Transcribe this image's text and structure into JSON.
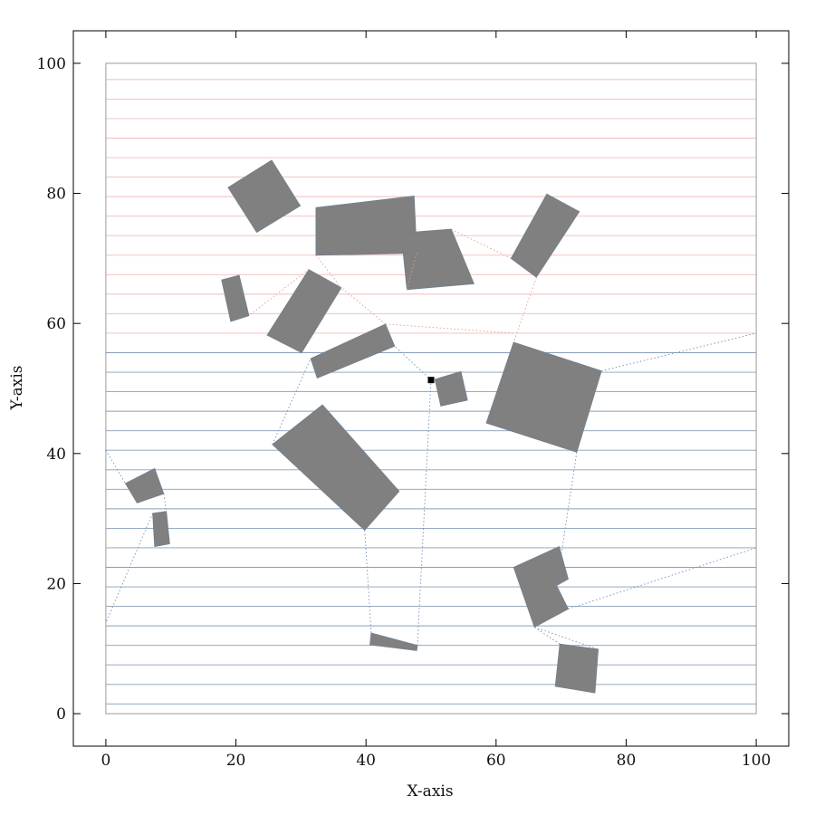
{
  "chart_data": {
    "type": "scatter",
    "title": "",
    "xlabel": "X-axis",
    "ylabel": "Y-axis",
    "xlim": [
      -5,
      105
    ],
    "ylim": [
      -5,
      105
    ],
    "xticks": [
      0,
      20,
      40,
      60,
      80,
      100
    ],
    "yticks": [
      0,
      20,
      40,
      60,
      80,
      100
    ],
    "grid": false,
    "legend": "none",
    "workspace": [
      0,
      100,
      0,
      100
    ],
    "scanline_y": [
      1.5,
      4.5,
      7.5,
      10.5,
      13.5,
      16.5,
      19.5,
      22.5,
      25.5,
      28.5,
      31.5,
      34.5,
      37.5,
      40.5,
      43.5,
      46.5,
      49.5,
      52.5,
      55.5,
      58.5,
      61.5,
      64.5,
      67.5,
      70.5,
      73.5,
      76.5,
      79.5,
      82.5,
      85.5,
      88.5,
      91.5,
      94.5,
      97.5
    ],
    "colors": {
      "obstacle": "#808080",
      "upper_lines": "#f2b0b0",
      "lower_lines": "#5f7f9f",
      "marker": "#000000",
      "frame": "#000000"
    },
    "obstacles": [
      [
        [
          18.8,
          80.9
        ],
        [
          25.5,
          85.1
        ],
        [
          29.9,
          78.1
        ],
        [
          23.2,
          74.0
        ]
      ],
      [
        [
          32.3,
          77.8
        ],
        [
          47.4,
          79.6
        ],
        [
          47.8,
          70.8
        ],
        [
          32.3,
          70.5
        ]
      ],
      [
        [
          45.4,
          73.9
        ],
        [
          53.1,
          74.5
        ],
        [
          56.6,
          66.1
        ],
        [
          46.3,
          65.2
        ]
      ],
      [
        [
          62.3,
          70.0
        ],
        [
          67.8,
          79.9
        ],
        [
          72.8,
          77.2
        ],
        [
          66.2,
          67.1
        ]
      ],
      [
        [
          17.8,
          66.7
        ],
        [
          20.5,
          67.4
        ],
        [
          22.0,
          61.2
        ],
        [
          19.2,
          60.3
        ]
      ],
      [
        [
          24.8,
          58.2
        ],
        [
          31.2,
          68.3
        ],
        [
          36.2,
          65.5
        ],
        [
          30.1,
          55.5
        ]
      ],
      [
        [
          31.5,
          54.6
        ],
        [
          43.0,
          59.9
        ],
        [
          44.4,
          56.5
        ],
        [
          32.5,
          51.6
        ]
      ],
      [
        [
          50.6,
          51.4
        ],
        [
          54.6,
          52.6
        ],
        [
          55.6,
          48.2
        ],
        [
          51.5,
          47.3
        ]
      ],
      [
        [
          62.7,
          57.1
        ],
        [
          76.2,
          52.7
        ],
        [
          72.4,
          40.2
        ],
        [
          58.5,
          44.7
        ]
      ],
      [
        [
          25.6,
          41.4
        ],
        [
          33.3,
          47.5
        ],
        [
          45.1,
          34.2
        ],
        [
          39.8,
          28.2
        ]
      ],
      [
        [
          3.0,
          35.4
        ],
        [
          7.5,
          37.7
        ],
        [
          8.9,
          33.8
        ],
        [
          4.8,
          32.4
        ]
      ],
      [
        [
          7.2,
          30.8
        ],
        [
          9.3,
          31.1
        ],
        [
          9.8,
          26.1
        ],
        [
          7.5,
          25.7
        ]
      ],
      [
        [
          62.7,
          22.5
        ],
        [
          69.7,
          25.7
        ],
        [
          71.1,
          20.7
        ],
        [
          69.3,
          19.7
        ],
        [
          71.1,
          16.1
        ],
        [
          65.9,
          13.3
        ]
      ],
      [
        [
          40.8,
          12.4
        ],
        [
          47.9,
          10.5
        ],
        [
          47.8,
          9.7
        ],
        [
          40.6,
          10.6
        ]
      ],
      [
        [
          69.8,
          10.7
        ],
        [
          75.7,
          9.9
        ],
        [
          75.2,
          3.2
        ],
        [
          69.1,
          4.2
        ]
      ]
    ],
    "marker": [
      50.0,
      51.3
    ]
  }
}
